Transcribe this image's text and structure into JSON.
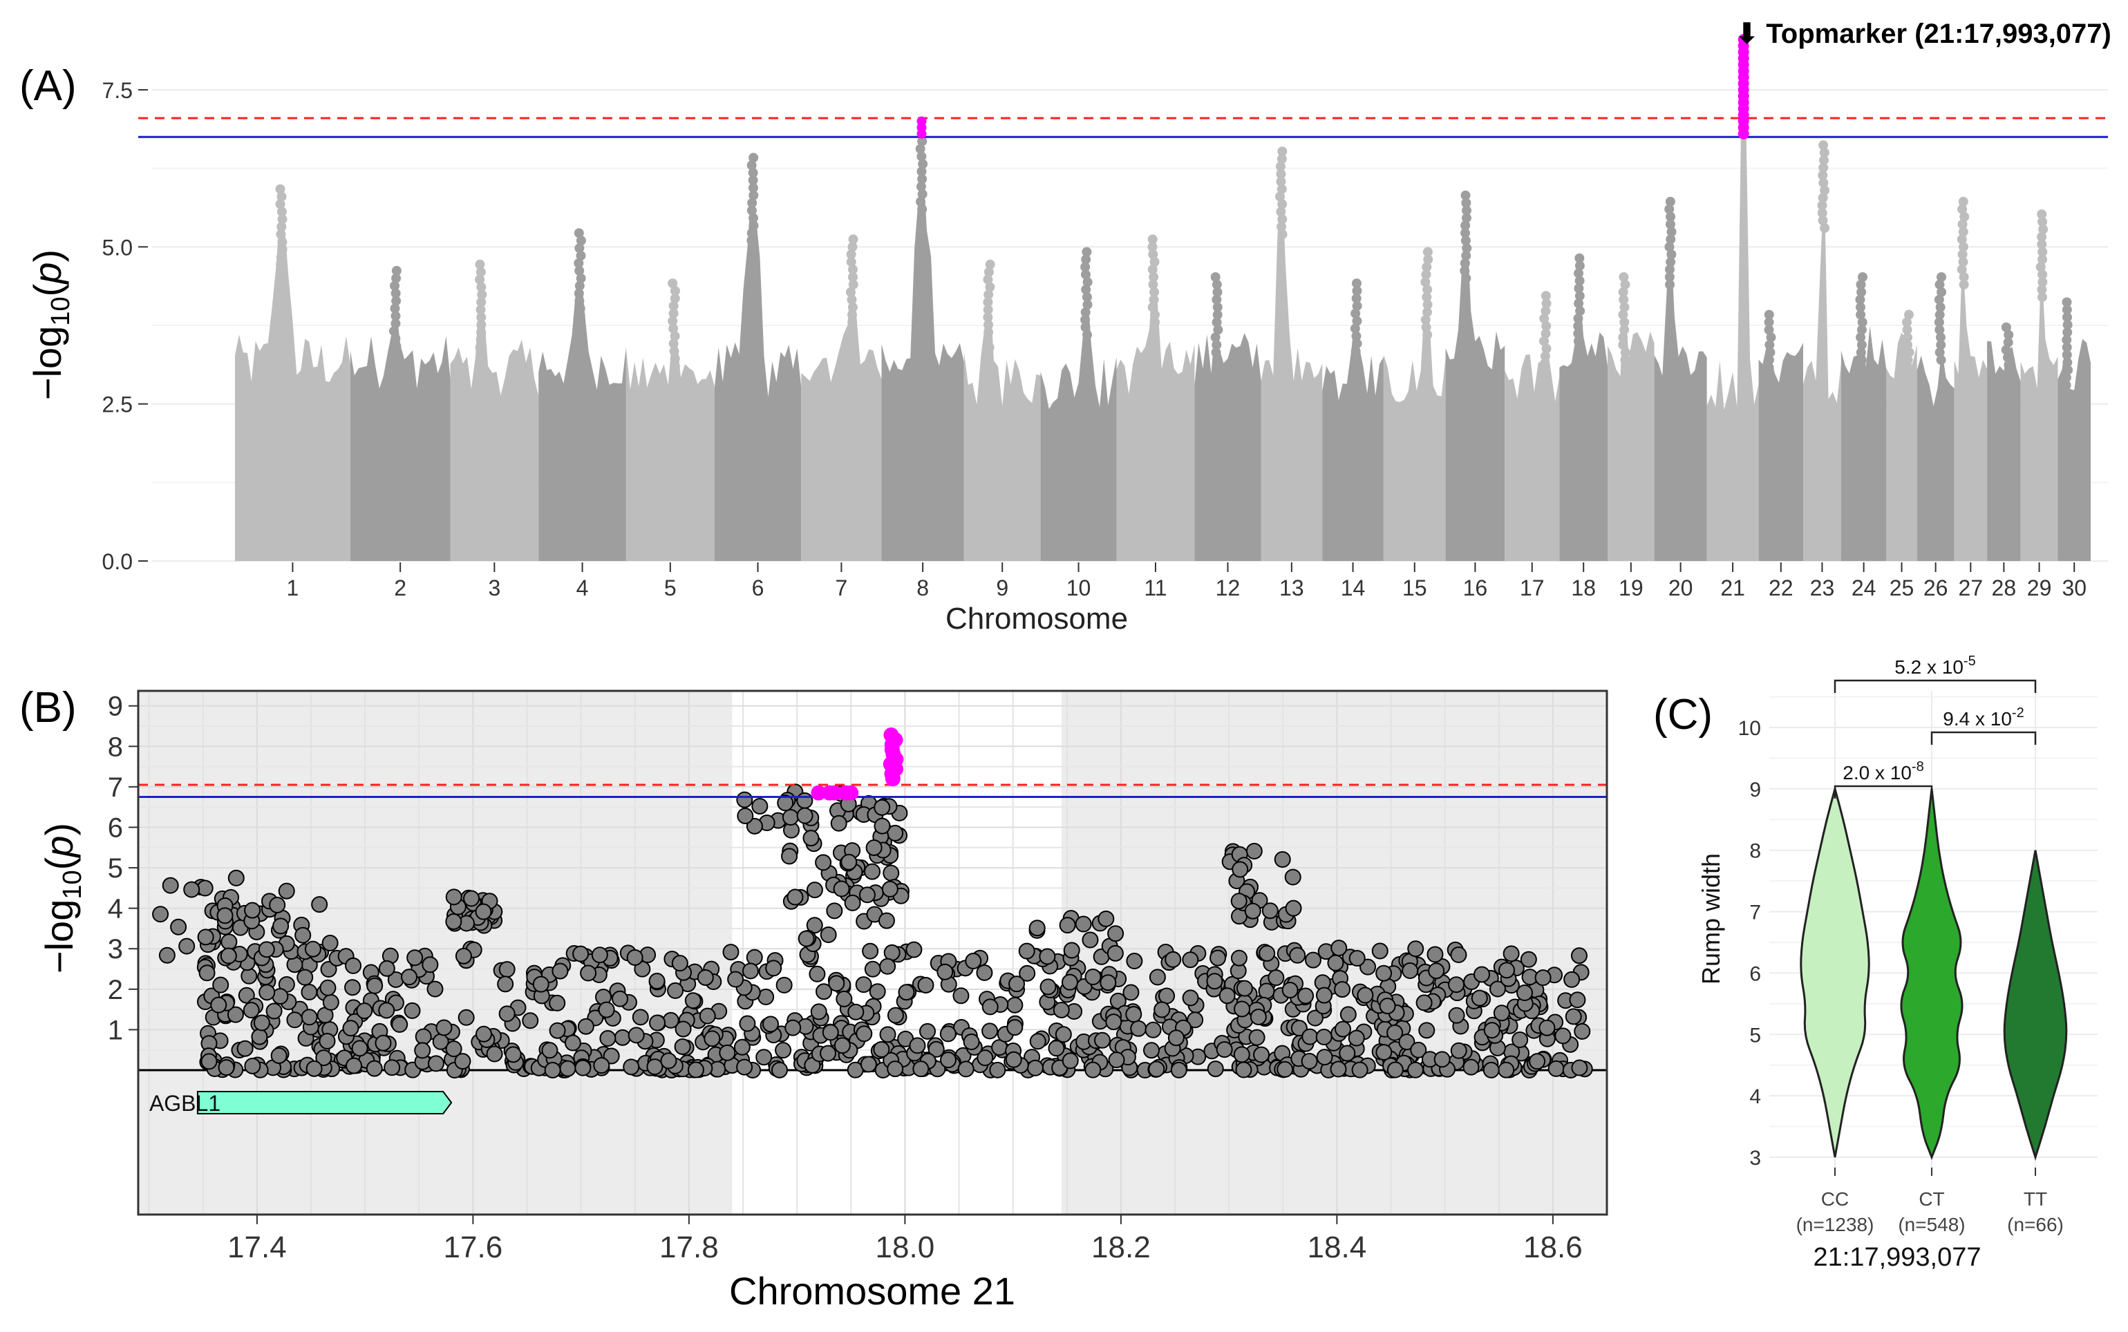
{
  "chart_data": [
    {
      "panel": "A",
      "type": "scatter",
      "label": "(A)",
      "title": "",
      "xlabel": "Chromosome",
      "ylabel": "−log",
      "ylabel_sub": "10",
      "ylabel_p": "p",
      "ylim": [
        0,
        8.6
      ],
      "y_ticks": [
        "0.0",
        "2.5",
        "5.0",
        "7.5"
      ],
      "y_tick_values": [
        0,
        2.5,
        5.0,
        7.5
      ],
      "chromosomes": [
        "1",
        "2",
        "3",
        "4",
        "5",
        "6",
        "7",
        "8",
        "9",
        "10",
        "11",
        "12",
        "13",
        "14",
        "15",
        "16",
        "17",
        "18",
        "19",
        "20",
        "21",
        "22",
        "23",
        "24",
        "25",
        "26",
        "27",
        "28",
        "29",
        "30"
      ],
      "chromosome_peak_log10p": [
        6.0,
        4.7,
        4.8,
        5.3,
        4.5,
        6.5,
        5.2,
        7.0,
        4.8,
        5.0,
        5.2,
        4.6,
        6.6,
        4.5,
        5.0,
        5.9,
        4.3,
        4.9,
        4.6,
        5.8,
        8.3,
        4.0,
        6.7,
        4.6,
        4.0,
        4.6,
        5.8,
        3.8,
        5.6,
        4.2
      ],
      "suggestive_threshold": 6.75,
      "genomewide_threshold": 7.05,
      "top_marker_annotation": "⬇ Topmarker (21:17,993,077)",
      "highlight_color": "#ff00ff",
      "series_colors": [
        "#bdbdbd",
        "#9e9e9e"
      ]
    },
    {
      "panel": "B",
      "type": "scatter",
      "label": "(B)",
      "xlabel": "Chromosome 21",
      "ylabel": "−log",
      "ylabel_sub": "10",
      "ylabel_p": "p",
      "xlim": [
        17.29,
        18.65
      ],
      "ylim": [
        0,
        9.2
      ],
      "x_ticks": [
        "17.4",
        "17.6",
        "17.8",
        "18.0",
        "18.2",
        "18.4",
        "18.6"
      ],
      "x_tick_values": [
        17.4,
        17.6,
        17.8,
        18.0,
        18.2,
        18.4,
        18.6
      ],
      "y_ticks": [
        "1",
        "2",
        "3",
        "4",
        "5",
        "6",
        "7",
        "8",
        "9"
      ],
      "y_tick_values": [
        1,
        2,
        3,
        4,
        5,
        6,
        7,
        8,
        9
      ],
      "shaded_regions": [
        [
          17.29,
          17.84
        ],
        [
          18.145,
          18.65
        ]
      ],
      "suggestive_threshold": 6.75,
      "genomewide_threshold": 7.05,
      "gene": {
        "name": "AGBL1",
        "start": 17.345,
        "end": 17.58,
        "color": "#7fffd4"
      },
      "top_marker": {
        "position": 17.993077,
        "log10p_max": 8.3
      },
      "highlight_color": "#ff00ff",
      "point_color": "#808080"
    },
    {
      "panel": "C",
      "type": "violin",
      "label": "(C)",
      "xlabel": "21:17,993,077",
      "ylabel": "Rump width",
      "ylim": [
        2.85,
        10.5
      ],
      "y_ticks": [
        "3",
        "4",
        "5",
        "6",
        "7",
        "8",
        "9",
        "10"
      ],
      "y_tick_values": [
        3,
        4,
        5,
        6,
        7,
        8,
        9,
        10
      ],
      "groups": [
        {
          "genotype": "CC",
          "n_label": "(n=1238)",
          "min": 3,
          "max": 9,
          "color": "#c7f0c0"
        },
        {
          "genotype": "CT",
          "n_label": "(n=548)",
          "min": 3,
          "max": 9,
          "color": "#2ca82c"
        },
        {
          "genotype": "TT",
          "n_label": "(n=66)",
          "min": 3,
          "max": 8,
          "color": "#217a30"
        }
      ],
      "comparisons": [
        {
          "groups": [
            "CC",
            "CT"
          ],
          "mantissa": "2.0 x 10",
          "exponent": "-8"
        },
        {
          "groups": [
            "CT",
            "TT"
          ],
          "mantissa": "9.4 x 10",
          "exponent": "-2"
        },
        {
          "groups": [
            "CC",
            "TT"
          ],
          "mantissa": "5.2 x 10",
          "exponent": "-5"
        }
      ]
    }
  ]
}
